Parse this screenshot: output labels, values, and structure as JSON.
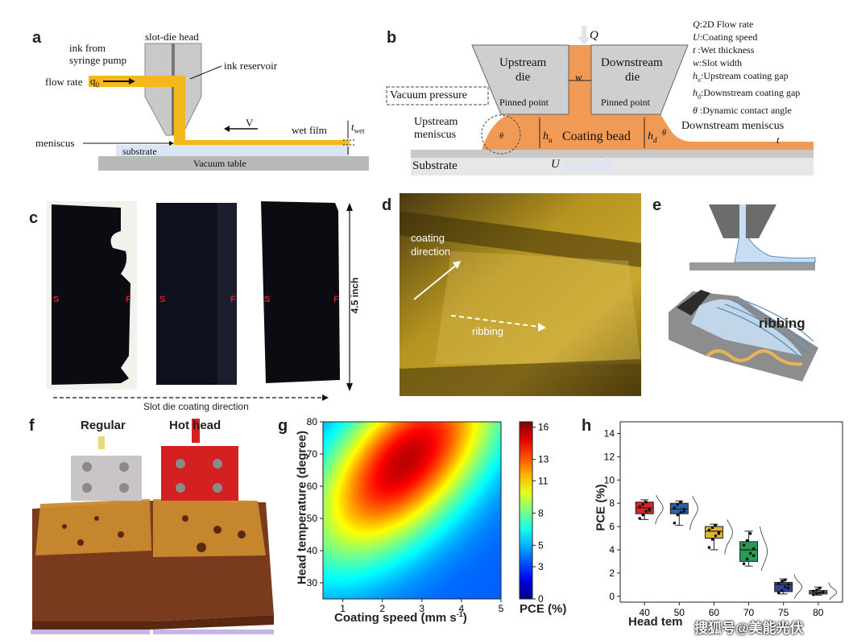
{
  "panel_labels": {
    "a": "a",
    "b": "b",
    "c": "c",
    "d": "d",
    "e": "e",
    "f": "f",
    "g": "g",
    "h": "h"
  },
  "a": {
    "slot_die_head": "slot-die head",
    "ink_from": "ink from",
    "syringe_pump": "syringe pump",
    "ink_reservoir": "ink reservoir",
    "flow_rate": "flow rate",
    "q0": "q",
    "q0_sub": "0",
    "V": "V",
    "wet_film": "wet film",
    "t_wet": "t",
    "t_wet_sub": "wet",
    "meniscus": "meniscus",
    "substrate": "substrate",
    "vacuum_table": "Vacuum table"
  },
  "b": {
    "Q": "Q",
    "upstream_die": [
      "Upstream",
      "die"
    ],
    "downstream_die": [
      "Downstream",
      "die"
    ],
    "w": "w",
    "vacuum_pressure": "Vacuum pressure",
    "pinned_point_left": "Pinned point",
    "pinned_point_right": "Pinned point",
    "upstream_meniscus": [
      "Upstream",
      "meniscus"
    ],
    "hu": "h",
    "hu_sub": "u",
    "hd": "h",
    "hd_sub": "d",
    "coating_bead": "Coating bead",
    "downstream_meniscus": "Downstream meniscus",
    "t": "t",
    "substrate": "Substrate",
    "U": "U",
    "theta_u": "θ",
    "theta_d": "θ",
    "legend": [
      {
        "sym": "Q",
        "text": ":2D Flow rate"
      },
      {
        "sym": "U",
        "text": ":Coating speed"
      },
      {
        "sym": "t",
        "text": " :Wet thickness"
      },
      {
        "sym": "w",
        "text": ":Slot width"
      },
      {
        "sym": "h",
        "sub": "u",
        "text": ":Upstream coating gap"
      },
      {
        "sym": "h",
        "sub": "d",
        "text": ":Downstream coating gap"
      },
      {
        "sym": "θ",
        "text": " :Dynamic contact angle"
      }
    ]
  },
  "c": {
    "markers": [
      "S",
      "F",
      "S",
      "F",
      "S",
      "F"
    ],
    "size": "4.5 inch",
    "direction": "Slot die coating direction"
  },
  "d": {
    "coating_direction": [
      "coating",
      "direction"
    ],
    "ribbing": "ribbing"
  },
  "e": {
    "ribbing": "ribbing"
  },
  "f": {
    "regular": "Regular",
    "hot_head": "Hot head"
  },
  "chart_data": [
    {
      "type": "heatmap",
      "xlabel": "Coating speed (mm s",
      "xlabel_sup": "-1",
      "xlabel_end": ")",
      "ylabel": "Head temperature (degree)",
      "xlim": [
        0.5,
        5
      ],
      "ylim": [
        25,
        80
      ],
      "xticks": [
        1,
        2,
        3,
        4,
        5
      ],
      "yticks": [
        30,
        40,
        50,
        60,
        70,
        80
      ],
      "colorbar_label": "PCE (%)",
      "colorbar_ticks": [
        0,
        3,
        5,
        8,
        11,
        13,
        16
      ],
      "colorbar_range": [
        0,
        16.5
      ],
      "peak": {
        "x": 2.6,
        "y": 68,
        "value": 15.5
      }
    },
    {
      "type": "box",
      "xlabel": "Head tem",
      "ylabel": "PCE (%)",
      "categories": [
        "40",
        "50",
        "60",
        "70",
        "75",
        "80"
      ],
      "ylim": [
        -0.5,
        15
      ],
      "yticks": [
        0,
        2,
        4,
        6,
        8,
        10,
        12,
        14
      ],
      "colors": [
        "#d9231f",
        "#2a62a8",
        "#e3b333",
        "#2a9a52",
        "#34409b",
        "#8a8a8a"
      ],
      "boxes": [
        {
          "category": "40",
          "min": 6.6,
          "q1": 7.1,
          "median": 7.6,
          "q3": 8.1,
          "max": 8.3,
          "points": [
            6.7,
            7.0,
            7.3,
            7.5,
            7.7,
            7.9,
            8.1,
            7.4
          ]
        },
        {
          "category": "50",
          "min": 6.1,
          "q1": 7.1,
          "median": 7.5,
          "q3": 8.0,
          "max": 8.2,
          "points": [
            6.3,
            7.0,
            7.2,
            7.5,
            7.6,
            7.9,
            8.1,
            7.3
          ]
        },
        {
          "category": "60",
          "min": 4.0,
          "q1": 5.0,
          "median": 5.6,
          "q3": 6.0,
          "max": 6.2,
          "points": [
            4.2,
            4.9,
            5.2,
            5.5,
            5.7,
            5.9,
            6.1,
            5.4
          ]
        },
        {
          "category": "70",
          "min": 2.6,
          "q1": 3.0,
          "median": 4.0,
          "q3": 4.7,
          "max": 5.6,
          "points": [
            2.8,
            3.2,
            3.7,
            4.1,
            4.4,
            4.8,
            5.4,
            3.5
          ]
        },
        {
          "category": "75",
          "min": 0.2,
          "q1": 0.4,
          "median": 1.0,
          "q3": 1.2,
          "max": 1.5,
          "points": [
            0.3,
            0.5,
            0.8,
            1.0,
            1.1,
            1.3,
            1.4,
            0.7
          ]
        },
        {
          "category": "80",
          "min": 0.1,
          "q1": 0.2,
          "median": 0.35,
          "q3": 0.5,
          "max": 0.8,
          "points": [
            0.15,
            0.25,
            0.3,
            0.4,
            0.45,
            0.55,
            0.7,
            0.35
          ]
        }
      ]
    }
  ],
  "watermark": "搜狐号@美能光伏"
}
